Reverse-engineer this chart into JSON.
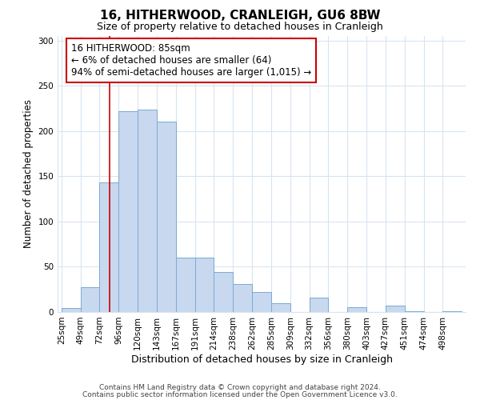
{
  "title": "16, HITHERWOOD, CRANLEIGH, GU6 8BW",
  "subtitle": "Size of property relative to detached houses in Cranleigh",
  "xlabel": "Distribution of detached houses by size in Cranleigh",
  "ylabel": "Number of detached properties",
  "bin_labels": [
    "25sqm",
    "49sqm",
    "72sqm",
    "96sqm",
    "120sqm",
    "143sqm",
    "167sqm",
    "191sqm",
    "214sqm",
    "238sqm",
    "262sqm",
    "285sqm",
    "309sqm",
    "332sqm",
    "356sqm",
    "380sqm",
    "403sqm",
    "427sqm",
    "451sqm",
    "474sqm",
    "498sqm"
  ],
  "bar_heights": [
    4,
    27,
    143,
    222,
    224,
    210,
    60,
    60,
    44,
    31,
    22,
    10,
    0,
    16,
    0,
    5,
    0,
    7,
    1,
    0,
    1
  ],
  "bar_color": "#c8d8ef",
  "bar_edge_color": "#7aabd4",
  "vline_color": "#cc0000",
  "annotation_line1": "16 HITHERWOOD: 85sqm",
  "annotation_line2": "← 6% of detached houses are smaller (64)",
  "annotation_line3": "94% of semi-detached houses are larger (1,015) →",
  "annotation_box_edge": "#cc0000",
  "ylim": [
    0,
    305
  ],
  "yticks": [
    0,
    50,
    100,
    150,
    200,
    250,
    300
  ],
  "footer_line1": "Contains HM Land Registry data © Crown copyright and database right 2024.",
  "footer_line2": "Contains public sector information licensed under the Open Government Licence v3.0.",
  "title_fontsize": 11,
  "subtitle_fontsize": 9,
  "xlabel_fontsize": 9,
  "ylabel_fontsize": 8.5,
  "tick_fontsize": 7.5,
  "footer_fontsize": 6.5,
  "annotation_fontsize": 8.5,
  "background_color": "#ffffff",
  "grid_color": "#d8e4f0"
}
